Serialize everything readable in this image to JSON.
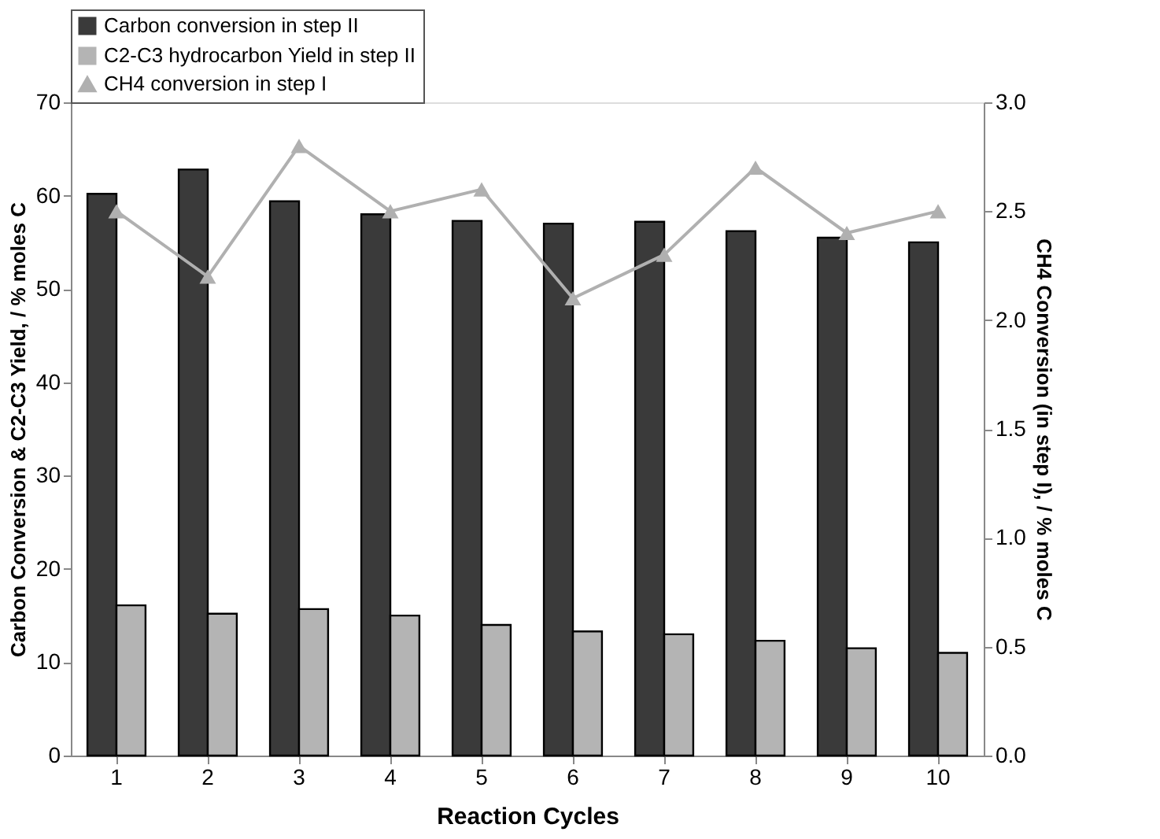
{
  "chart_data": {
    "type": "bar",
    "xlabel": "Reaction Cycles",
    "ylabel": "Carbon Conversion & C2-C3 Yield, / % moles C",
    "y2label": "CH4 Conversion (in step I), / % moles C",
    "categories": [
      "1",
      "2",
      "3",
      "4",
      "5",
      "6",
      "7",
      "8",
      "9",
      "10"
    ],
    "series": [
      {
        "name": "Carbon conversion in step II",
        "color": "#3a3a3a",
        "values": [
          60.2,
          62.8,
          59.4,
          58.0,
          57.3,
          57.0,
          57.2,
          56.2,
          55.5,
          55.0
        ]
      },
      {
        "name": "C2-C3 hydrocarbon Yield in step II",
        "color": "#b4b4b4",
        "values": [
          16.1,
          15.2,
          15.7,
          15.0,
          14.0,
          13.3,
          13.0,
          12.3,
          11.5,
          11.0
        ]
      },
      {
        "name": "CH4 conversion in step I",
        "type": "line",
        "axis": "y2",
        "color": "#b0b0b0",
        "marker": "triangle",
        "values": [
          2.5,
          2.2,
          2.8,
          2.5,
          2.6,
          2.1,
          2.3,
          2.7,
          2.4,
          2.5
        ]
      }
    ],
    "ylim": [
      0,
      70
    ],
    "yticks": [
      0,
      10,
      20,
      30,
      40,
      50,
      60,
      70
    ],
    "y2lim": [
      0,
      3
    ],
    "y2ticks": [
      {
        "value": 0,
        "label": "0.0"
      },
      {
        "value": 0.5,
        "label": "0.5"
      },
      {
        "value": 1,
        "label": "1.0"
      },
      {
        "value": 1.5,
        "label": "1.5"
      },
      {
        "value": 2,
        "label": "2.0"
      },
      {
        "value": 2.5,
        "label": "2.5"
      },
      {
        "value": 3,
        "label": "3.0"
      }
    ],
    "grid": false,
    "legend": "top"
  }
}
